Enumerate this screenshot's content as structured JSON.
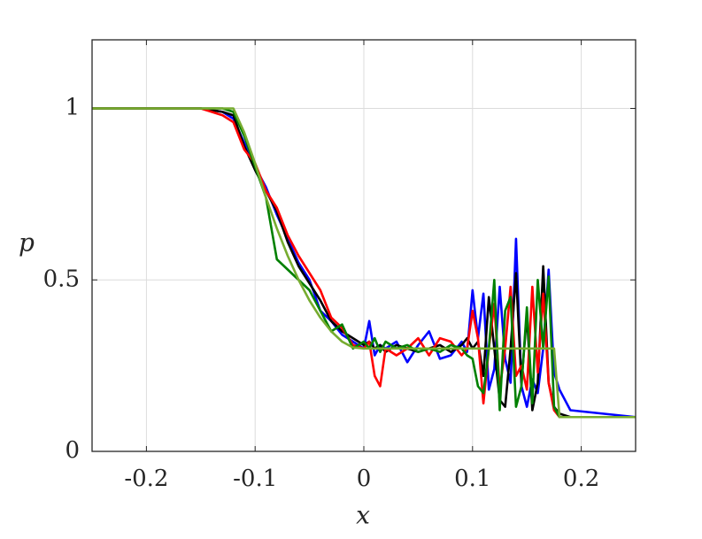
{
  "chart_data": {
    "type": "line",
    "x_label": "x",
    "y_label": "p",
    "x": [
      -0.25,
      -0.15,
      -0.13,
      -0.12,
      -0.11,
      -0.1,
      -0.09,
      -0.08,
      -0.07,
      -0.06,
      -0.05,
      -0.04,
      -0.03,
      -0.02,
      -0.01,
      0,
      0.005,
      0.01,
      0.015,
      0.02,
      0.03,
      0.04,
      0.05,
      0.06,
      0.07,
      0.08,
      0.09,
      0.095,
      0.1,
      0.105,
      0.11,
      0.115,
      0.12,
      0.125,
      0.13,
      0.135,
      0.14,
      0.145,
      0.15,
      0.155,
      0.16,
      0.165,
      0.17,
      0.175,
      0.18,
      0.19,
      0.25
    ],
    "series": [
      {
        "color": "#0000ff",
        "values": [
          1,
          1,
          0.99,
          0.97,
          0.9,
          0.83,
          0.77,
          0.69,
          0.62,
          0.55,
          0.5,
          0.41,
          0.38,
          0.34,
          0.32,
          0.3,
          0.38,
          0.28,
          0.31,
          0.3,
          0.32,
          0.26,
          0.31,
          0.35,
          0.27,
          0.28,
          0.32,
          0.29,
          0.47,
          0.33,
          0.46,
          0.18,
          0.24,
          0.48,
          0.27,
          0.2,
          0.62,
          0.19,
          0.13,
          0.21,
          0.17,
          0.3,
          0.53,
          0.23,
          0.18,
          0.12,
          0.1
        ]
      },
      {
        "color": "#000000",
        "values": [
          1,
          1,
          0.99,
          0.98,
          0.89,
          0.82,
          0.76,
          0.7,
          0.61,
          0.54,
          0.49,
          0.44,
          0.38,
          0.35,
          0.33,
          0.31,
          0.32,
          0.3,
          0.31,
          0.29,
          0.31,
          0.3,
          0.29,
          0.3,
          0.31,
          0.29,
          0.31,
          0.33,
          0.3,
          0.32,
          0.22,
          0.45,
          0.3,
          0.15,
          0.13,
          0.3,
          0.52,
          0.2,
          0.4,
          0.12,
          0.2,
          0.54,
          0.2,
          0.13,
          0.11,
          0.1,
          0.1
        ]
      },
      {
        "color": "#ff0000",
        "values": [
          1,
          1,
          0.98,
          0.96,
          0.88,
          0.84,
          0.76,
          0.71,
          0.63,
          0.57,
          0.52,
          0.47,
          0.39,
          0.36,
          0.31,
          0.3,
          0.32,
          0.22,
          0.19,
          0.3,
          0.28,
          0.3,
          0.33,
          0.28,
          0.33,
          0.32,
          0.28,
          0.3,
          0.41,
          0.33,
          0.14,
          0.3,
          0.43,
          0.18,
          0.3,
          0.48,
          0.22,
          0.25,
          0.18,
          0.48,
          0.23,
          0.46,
          0.2,
          0.12,
          0.1,
          0.1,
          0.1
        ]
      },
      {
        "color": "#008000",
        "values": [
          1,
          1,
          1,
          0.99,
          0.92,
          0.83,
          0.74,
          0.56,
          0.53,
          0.5,
          0.47,
          0.41,
          0.35,
          0.37,
          0.3,
          0.32,
          0.3,
          0.33,
          0.29,
          0.32,
          0.3,
          0.31,
          0.29,
          0.3,
          0.29,
          0.31,
          0.3,
          0.28,
          0.27,
          0.19,
          0.17,
          0.3,
          0.5,
          0.12,
          0.41,
          0.45,
          0.13,
          0.19,
          0.42,
          0.14,
          0.5,
          0.3,
          0.51,
          0.13,
          0.1,
          0.1,
          0.1
        ]
      },
      {
        "color": "#77ac30",
        "values": [
          1,
          1,
          1,
          1,
          0.93,
          0.84,
          0.74,
          0.65,
          0.57,
          0.5,
          0.44,
          0.39,
          0.35,
          0.32,
          0.303,
          0.3,
          0.3,
          0.3,
          0.3,
          0.3,
          0.3,
          0.3,
          0.3,
          0.3,
          0.3,
          0.3,
          0.3,
          0.3,
          0.3,
          0.3,
          0.3,
          0.3,
          0.3,
          0.3,
          0.3,
          0.3,
          0.3,
          0.3,
          0.3,
          0.3,
          0.3,
          0.3,
          0.3,
          0.3,
          0.1,
          0.1,
          0.1
        ]
      }
    ],
    "xlim": [
      -0.25,
      0.25
    ],
    "ylim": [
      0,
      1.2
    ],
    "xticks": [
      -0.2,
      -0.1,
      0,
      0.1,
      0.2
    ],
    "yticks": [
      0,
      0.5,
      1
    ],
    "grid": true
  }
}
